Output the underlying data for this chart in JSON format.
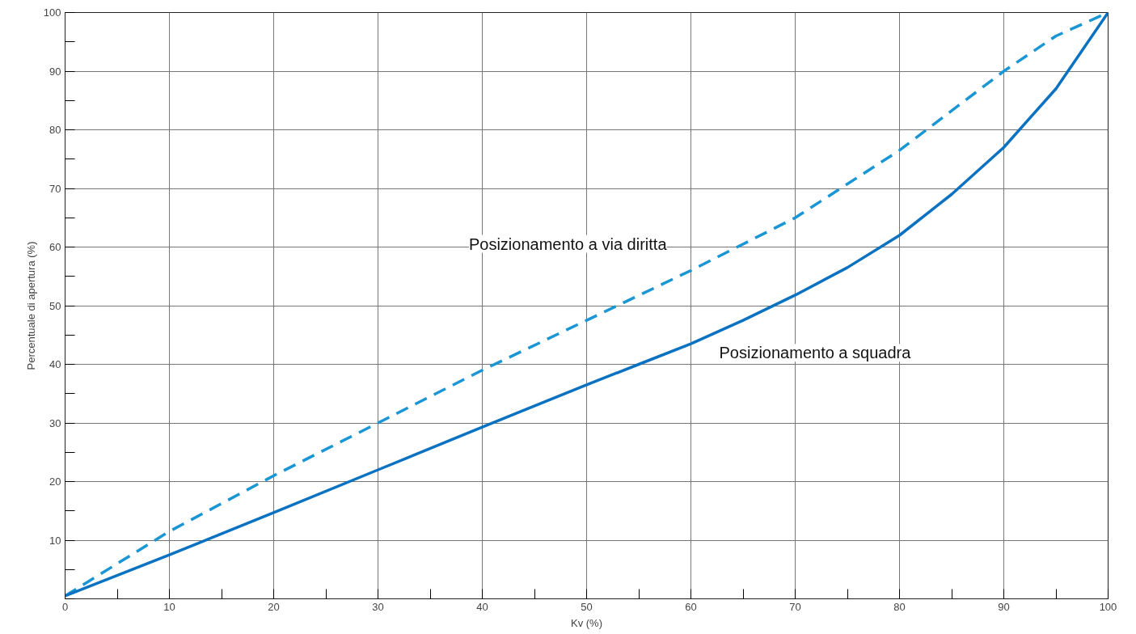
{
  "chart_data": {
    "type": "line",
    "xlabel": "Kv (%)",
    "ylabel": "Percentuale di apertura (%)",
    "xlim": [
      0,
      100
    ],
    "ylim": [
      0,
      100
    ],
    "xticks": [
      0,
      {
        "value": 5,
        "label": null
      },
      10,
      {
        "value": 15,
        "label": null
      },
      20,
      {
        "value": 25,
        "label": null
      },
      30,
      {
        "value": 35,
        "label": null
      },
      40,
      {
        "value": 45,
        "label": null
      },
      50,
      {
        "value": 55,
        "label": null
      },
      60,
      {
        "value": 65,
        "label": null
      },
      70,
      {
        "value": 75,
        "label": null
      },
      80,
      {
        "value": 85,
        "label": null
      },
      90,
      {
        "value": 95,
        "label": null
      },
      100
    ],
    "yticks": [
      {
        "value": 0,
        "label": null
      },
      {
        "value": 5,
        "label": null
      },
      10,
      {
        "value": 15,
        "label": null
      },
      20,
      {
        "value": 25,
        "label": null
      },
      30,
      {
        "value": 35,
        "label": null
      },
      40,
      {
        "value": 45,
        "label": null
      },
      50,
      {
        "value": 55,
        "label": null
      },
      60,
      {
        "value": 65,
        "label": null
      },
      70,
      {
        "value": 75,
        "label": null
      },
      80,
      {
        "value": 85,
        "label": null
      },
      90,
      {
        "value": 95,
        "label": null
      },
      100
    ],
    "grid": true,
    "marker": "none",
    "series": [
      {
        "name": "Posizionamento a via diritta",
        "color": "#1a96d4",
        "line_style": "dashed",
        "x": [
          0,
          10,
          20,
          30,
          40,
          50,
          60,
          70,
          80,
          90,
          95,
          100
        ],
        "values": [
          0.5,
          11.5,
          21,
          30,
          39,
          47.5,
          56,
          65,
          76.5,
          90,
          96,
          100
        ]
      },
      {
        "name": "Posizionamento a squadra",
        "color": "#0a72c0",
        "line_style": "solid",
        "x": [
          0,
          10,
          20,
          30,
          40,
          50,
          55,
          60,
          65,
          70,
          75,
          80,
          85,
          90,
          95,
          100
        ],
        "values": [
          0.5,
          7.5,
          14.7,
          22,
          29.3,
          36.5,
          40,
          43.5,
          47.5,
          51.8,
          56.5,
          62,
          69,
          77,
          87,
          100
        ]
      }
    ]
  }
}
